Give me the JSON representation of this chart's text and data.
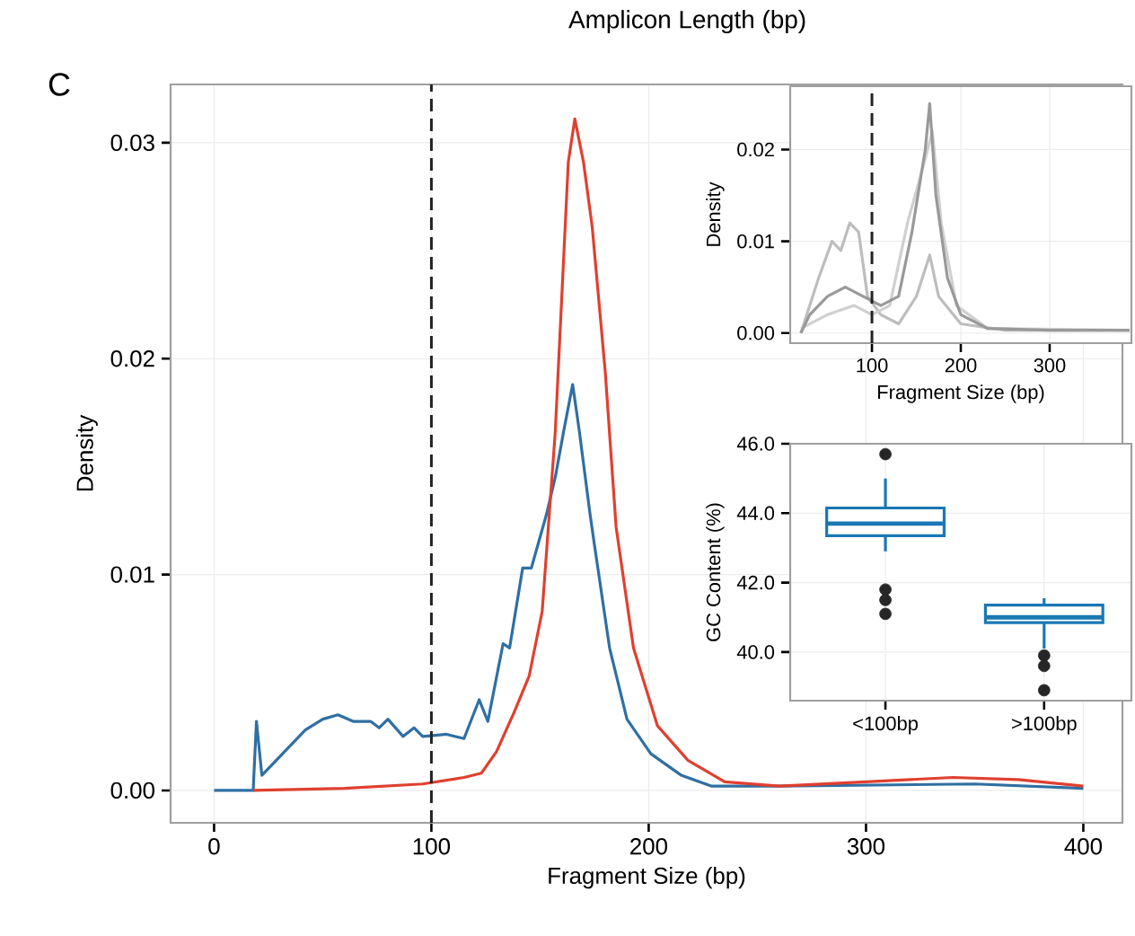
{
  "chart_data": [
    {
      "type": "line",
      "title": "Amplicon Length (bp)",
      "xlabel": "Fragment Size (bp)",
      "ylabel": "Density",
      "annotations": [
        "C"
      ],
      "xlim": [
        -20,
        418
      ],
      "ylim": [
        -0.0015,
        0.0327
      ],
      "xticks": [
        0,
        100,
        200,
        300,
        400
      ],
      "yticks": [
        {
          "value": 0,
          "label": "0.00"
        },
        0.01,
        0.02,
        0.03
      ],
      "grid": true,
      "ref_lines": [
        {
          "axis": "x",
          "value": 100,
          "color": "#222222",
          "line_style": "dashed"
        }
      ],
      "series": [
        {
          "color": "#2f6fa3",
          "x": [
            0,
            18,
            19.5,
            22,
            42,
            50,
            57,
            64,
            72,
            76,
            80,
            87,
            92,
            96,
            107,
            115,
            122,
            126,
            133,
            136,
            142,
            146,
            153,
            157,
            161,
            165,
            168,
            173,
            175,
            182,
            190,
            201,
            215,
            229,
            260,
            300,
            350,
            400
          ],
          "values": [
            0,
            0,
            0.0032,
            0.0007,
            0.0028,
            0.0033,
            0.0035,
            0.0032,
            0.0032,
            0.0029,
            0.0033,
            0.0025,
            0.0029,
            0.0025,
            0.0026,
            0.0024,
            0.0042,
            0.0032,
            0.0068,
            0.0066,
            0.0103,
            0.0103,
            0.0128,
            0.0145,
            0.0167,
            0.0188,
            0.0167,
            0.0128,
            0.0114,
            0.0066,
            0.0033,
            0.0017,
            0.0007,
            0.0002,
            0.0002,
            null,
            0.0003,
            0.0001
          ]
        },
        {
          "color": "#e0402f",
          "x": [
            18,
            60,
            96,
            115,
            123,
            130,
            138,
            145,
            151,
            157,
            163,
            166,
            170,
            174,
            180,
            185,
            193,
            204,
            218,
            235,
            260,
            300,
            340,
            370,
            400
          ],
          "values": [
            0,
            0.0001,
            0.0003,
            0.0006,
            0.0008,
            0.0018,
            0.0036,
            0.0053,
            0.0083,
            0.0166,
            0.0291,
            0.0311,
            0.0291,
            0.0261,
            0.0194,
            0.0122,
            0.0066,
            0.003,
            0.0014,
            0.0004,
            0.0002,
            0.0004,
            0.0006,
            0.0005,
            0.0002
          ]
        }
      ]
    },
    {
      "type": "line",
      "xlabel": "Fragment Size (bp)",
      "ylabel": "Density",
      "xlim": [
        8,
        392
      ],
      "ylim": [
        -0.0011,
        0.0269
      ],
      "xticks": [
        100,
        200,
        300
      ],
      "yticks": [
        {
          "value": 0,
          "label": "0.00"
        },
        0.01,
        0.02
      ],
      "grid": true,
      "ref_lines": [
        {
          "axis": "x",
          "value": 100,
          "color": "#222222",
          "line_style": "dashed"
        }
      ],
      "series": [
        {
          "color": "#bdbdbd",
          "x": [
            20,
            40,
            55,
            65,
            75,
            85,
            95,
            110,
            130,
            150,
            165,
            175,
            200,
            250,
            390
          ],
          "values": [
            0,
            0.006,
            0.01,
            0.009,
            0.012,
            0.011,
            0.004,
            0.002,
            0.001,
            0.004,
            0.0085,
            0.004,
            0.001,
            0.0003,
            0.0003
          ]
        },
        {
          "color": "#d0d0d0",
          "x": [
            20,
            50,
            80,
            100,
            120,
            140,
            160,
            168,
            178,
            195,
            230,
            390
          ],
          "values": [
            0.0005,
            0.002,
            0.003,
            0.002,
            0.003,
            0.012,
            0.019,
            0.022,
            0.012,
            0.003,
            0.0005,
            0.0003
          ]
        },
        {
          "color": "#999999",
          "x": [
            20,
            30,
            50,
            70,
            90,
            110,
            130,
            145,
            160,
            165,
            172,
            185,
            200,
            230,
            300,
            390
          ],
          "values": [
            0,
            0.002,
            0.004,
            0.005,
            0.004,
            0.003,
            0.004,
            0.011,
            0.02,
            0.025,
            0.015,
            0.006,
            0.002,
            0.0005,
            0.0003,
            0.0003
          ]
        }
      ]
    },
    {
      "type": "box",
      "ylabel": "GC Content (%)",
      "categories": [
        "<100bp",
        ">100bp"
      ],
      "color": "#1a78b4",
      "ylim": [
        38.6,
        46.0
      ],
      "yticks": [
        {
          "value": 40,
          "label": "40.0"
        },
        {
          "value": 42,
          "label": "42.0"
        },
        {
          "value": 44,
          "label": "44.0"
        },
        {
          "value": 46,
          "label": "46.0"
        }
      ],
      "grid": true,
      "boxes": [
        {
          "low": 42.9,
          "q1": 43.35,
          "median": 43.7,
          "q3": 44.15,
          "high": 45.0,
          "outliers": [
            45.7,
            41.8,
            41.5,
            41.1
          ]
        },
        {
          "low": 40.1,
          "q1": 40.85,
          "median": 41.0,
          "q3": 41.35,
          "high": 41.55,
          "outliers": [
            39.9,
            39.6,
            38.9
          ]
        }
      ]
    }
  ]
}
